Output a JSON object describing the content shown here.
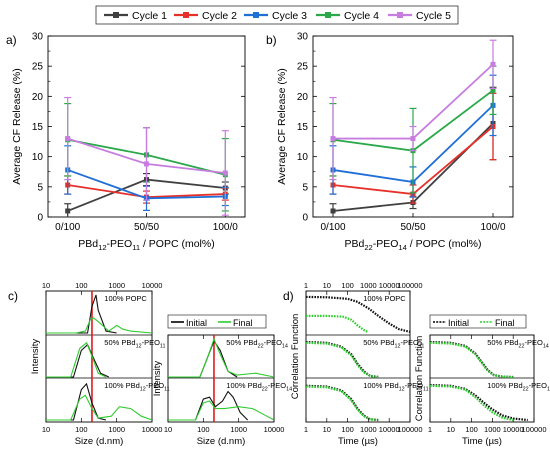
{
  "legend": {
    "entries": [
      {
        "name": "Cycle 1",
        "color": "#404040"
      },
      {
        "name": "Cycle 2",
        "color": "#e8302a"
      },
      {
        "name": "Cycle 3",
        "color": "#1f6fd6"
      },
      {
        "name": "Cycle 4",
        "color": "#2aa84a"
      },
      {
        "name": "Cycle 5",
        "color": "#c77ce0"
      }
    ]
  },
  "chart_data": [
    {
      "panel": "a)",
      "type": "line",
      "categories": [
        "0/100",
        "50/50",
        "100/0"
      ],
      "ylabel": "Average CF Release (%)",
      "xlabel": "PBd12-PEO11 / POPC (mol%)",
      "ylim": [
        0,
        30
      ],
      "yticks": [
        "0",
        "5",
        "10",
        "15",
        "20",
        "25",
        "30"
      ],
      "series": [
        {
          "name": "Cycle 1",
          "values": [
            1.0,
            6.2,
            4.8
          ],
          "errors": [
            1.2,
            1.0,
            1.0
          ]
        },
        {
          "name": "Cycle 2",
          "values": [
            5.3,
            3.3,
            3.8
          ],
          "errors": [
            1.5,
            1.0,
            1.0
          ]
        },
        {
          "name": "Cycle 3",
          "values": [
            7.8,
            3.1,
            3.4
          ],
          "errors": [
            4.0,
            2.0,
            1.5
          ]
        },
        {
          "name": "Cycle 4",
          "values": [
            12.8,
            10.3,
            7.0
          ],
          "errors": [
            6.0,
            4.5,
            6.0
          ]
        },
        {
          "name": "Cycle 5",
          "values": [
            13.0,
            8.8,
            7.3
          ],
          "errors": [
            6.8,
            6.0,
            7.0
          ]
        }
      ]
    },
    {
      "panel": "b)",
      "type": "line",
      "categories": [
        "0/100",
        "50/50",
        "100/0"
      ],
      "ylabel": "Average CF Release (%)",
      "xlabel": "PBd22-PEO14 / POPC (mol%)",
      "ylim": [
        0,
        30
      ],
      "yticks": [
        "0",
        "5",
        "10",
        "15",
        "20",
        "25",
        "30"
      ],
      "series": [
        {
          "name": "Cycle 1",
          "values": [
            1.0,
            2.4,
            15.5
          ],
          "errors": [
            1.2,
            1.0,
            6.0
          ]
        },
        {
          "name": "Cycle 2",
          "values": [
            5.3,
            3.8,
            15.0
          ],
          "errors": [
            1.5,
            1.5,
            5.5
          ]
        },
        {
          "name": "Cycle 3",
          "values": [
            7.8,
            5.8,
            18.5
          ],
          "errors": [
            4.0,
            2.5,
            5.0
          ]
        },
        {
          "name": "Cycle 4",
          "values": [
            12.8,
            11.0,
            21.0
          ],
          "errors": [
            6.0,
            7.0,
            4.0
          ]
        },
        {
          "name": "Cycle 5",
          "values": [
            13.0,
            13.0,
            25.3
          ],
          "errors": [
            6.8,
            2.0,
            4.0
          ]
        }
      ]
    },
    {
      "panel": "c)",
      "type": "line",
      "xscale": "log",
      "xlim": [
        10,
        10000
      ],
      "xticks": [
        "10",
        "100",
        "1000",
        "10000"
      ],
      "xlabel": "Size (d.nm)",
      "ylabel": "Intensity",
      "legend": [
        "Initial",
        "Final"
      ],
      "subpanels": [
        {
          "label": "100% POPC",
          "column": 0,
          "row": 0,
          "initial": {
            "x": [
              10,
              150,
              200,
              260,
              300,
              500,
              1000
            ],
            "y": [
              0,
              0,
              0.7,
              1.0,
              0.6,
              0.05,
              0
            ]
          },
          "final": {
            "x": [
              10,
              70,
              130,
              180,
              220,
              300,
              600,
              1000,
              1500,
              2500,
              10000
            ],
            "y": [
              0,
              0,
              0.05,
              0.35,
              0.4,
              0.3,
              0.05,
              0.2,
              0.1,
              0.05,
              0
            ]
          }
        },
        {
          "label": "50% PBd12-PEO11",
          "column": 0,
          "row": 1,
          "initial": {
            "x": [
              10,
              60,
              100,
              150,
              220,
              350,
              600
            ],
            "y": [
              0,
              0,
              0.7,
              0.85,
              0.5,
              0.1,
              0
            ]
          },
          "final": {
            "x": [
              10,
              50,
              90,
              140,
              200,
              300,
              500
            ],
            "y": [
              0,
              0,
              0.75,
              0.9,
              0.55,
              0.1,
              0
            ]
          }
        },
        {
          "label": "100% PBd12-PEO11",
          "column": 0,
          "row": 2,
          "initial": {
            "x": [
              10,
              60,
              100,
              140,
              200,
              300,
              500
            ],
            "y": [
              0,
              0,
              0.8,
              0.95,
              0.45,
              0.05,
              0
            ]
          },
          "final": {
            "x": [
              10,
              50,
              90,
              130,
              200,
              300,
              700,
              1200,
              2500,
              5000,
              10000
            ],
            "y": [
              0,
              0,
              0.55,
              0.65,
              0.3,
              0.05,
              0.1,
              0.35,
              0.3,
              0.1,
              0
            ]
          }
        },
        {
          "label": "50% PBd22-PEO14",
          "column": 1,
          "row": 1,
          "initial": {
            "x": [
              10,
              80,
              130,
              200,
              300,
              500,
              900
            ],
            "y": [
              0,
              0,
              0.5,
              0.95,
              0.7,
              0.15,
              0
            ]
          },
          "final": {
            "x": [
              10,
              80,
              130,
              200,
              300,
              500,
              900,
              3000,
              10000
            ],
            "y": [
              0,
              0,
              0.5,
              1.0,
              0.6,
              0.15,
              0.05,
              0.1,
              0
            ]
          }
        },
        {
          "label": "100% PBd22-PEO14",
          "column": 1,
          "row": 2,
          "initial": {
            "x": [
              10,
              60,
              100,
              150,
              220,
              350,
              500,
              700,
              1100,
              1800
            ],
            "y": [
              0,
              0,
              0.55,
              0.6,
              0.35,
              0.5,
              0.75,
              0.6,
              0.2,
              0
            ]
          },
          "final": {
            "x": [
              10,
              60,
              100,
              150,
              220,
              400,
              1000,
              2500,
              5000,
              10000
            ],
            "y": [
              0,
              0,
              0.45,
              0.5,
              0.3,
              0.3,
              0.35,
              0.3,
              0.15,
              0
            ]
          }
        }
      ]
    },
    {
      "panel": "d)",
      "type": "line",
      "xscale": "log",
      "xlim": [
        1,
        100000
      ],
      "xticks": [
        "1",
        "10",
        "100",
        "1000",
        "10000",
        "100000"
      ],
      "xlabel": "Time (µs)",
      "ylabel": "Correlation Function",
      "legend": [
        "Initial",
        "Final"
      ],
      "subpanels": [
        {
          "label": "100% POPC",
          "column": 0,
          "row": 0,
          "initial": {
            "x": [
              1,
              10,
              100,
              300,
              1000,
              3000,
              10000,
              30000,
              100000
            ],
            "y": [
              0.95,
              0.94,
              0.9,
              0.82,
              0.65,
              0.45,
              0.25,
              0.1,
              0.03
            ]
          },
          "final": {
            "x": [
              1,
              10,
              60,
              150,
              300,
              600,
              1000
            ],
            "y": [
              0.45,
              0.45,
              0.43,
              0.35,
              0.2,
              0.08,
              0.02
            ]
          }
        },
        {
          "label": "50% PBd12-PEO11",
          "column": 0,
          "row": 1,
          "initial": {
            "x": [
              1,
              10,
              50,
              150,
              300,
              600,
              1200,
              3000
            ],
            "y": [
              0.92,
              0.9,
              0.8,
              0.6,
              0.35,
              0.15,
              0.03,
              0
            ]
          },
          "final": {
            "x": [
              1,
              10,
              50,
              150,
              300,
              600,
              1200,
              3000
            ],
            "y": [
              0.9,
              0.88,
              0.78,
              0.57,
              0.32,
              0.12,
              0.03,
              0
            ]
          }
        },
        {
          "label": "100% PBd12-PEO11",
          "column": 0,
          "row": 2,
          "initial": {
            "x": [
              1,
              10,
              50,
              150,
              300,
              600,
              1200,
              3000
            ],
            "y": [
              0.9,
              0.88,
              0.78,
              0.55,
              0.3,
              0.12,
              0.02,
              0
            ]
          },
          "final": {
            "x": [
              1,
              10,
              50,
              150,
              300,
              600,
              1200,
              3000
            ],
            "y": [
              0.88,
              0.86,
              0.76,
              0.52,
              0.28,
              0.1,
              0.02,
              0
            ]
          }
        },
        {
          "label": "50% PBd22-PEO14",
          "column": 1,
          "row": 1,
          "initial": {
            "x": [
              1,
              10,
              50,
              150,
              300,
              600,
              1200,
              3000,
              10000
            ],
            "y": [
              0.92,
              0.9,
              0.82,
              0.62,
              0.4,
              0.18,
              0.05,
              0.01,
              0
            ]
          },
          "final": {
            "x": [
              1,
              10,
              50,
              150,
              300,
              600,
              1200,
              3000,
              10000
            ],
            "y": [
              0.9,
              0.88,
              0.8,
              0.6,
              0.38,
              0.16,
              0.04,
              0.01,
              0
            ]
          }
        },
        {
          "label": "100% PBd22-PEO14",
          "column": 1,
          "row": 2,
          "initial": {
            "x": [
              1,
              10,
              50,
              150,
              400,
              1000,
              3000,
              10000,
              50000
            ],
            "y": [
              0.92,
              0.9,
              0.82,
              0.65,
              0.45,
              0.28,
              0.12,
              0.04,
              0
            ]
          },
          "final": {
            "x": [
              1,
              10,
              50,
              150,
              400,
              1000,
              3000,
              10000
            ],
            "y": [
              0.9,
              0.88,
              0.8,
              0.6,
              0.38,
              0.2,
              0.06,
              0
            ]
          }
        }
      ]
    }
  ]
}
